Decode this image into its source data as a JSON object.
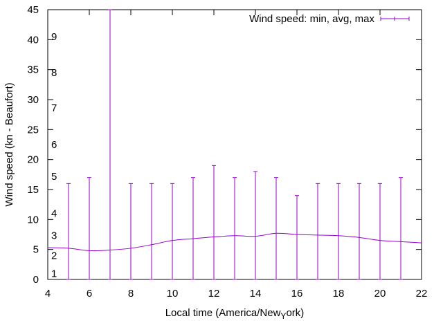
{
  "chart_data": {
    "type": "line",
    "xlabel": "Local time (America/New",
    "xlabel_sub": "Y",
    "xlabel_rest": "ork)",
    "ylabel": "Wind speed (kn - Beaufort)",
    "xlim": [
      4,
      22
    ],
    "ylim": [
      0,
      45
    ],
    "x_ticks": [
      4,
      6,
      8,
      10,
      12,
      14,
      16,
      18,
      20,
      22
    ],
    "y_ticks": [
      0,
      5,
      10,
      15,
      20,
      25,
      30,
      35,
      40,
      45
    ],
    "beaufort_scale": [
      {
        "label": "1",
        "value": 1.0
      },
      {
        "label": "2",
        "value": 4.0
      },
      {
        "label": "3",
        "value": 7.3
      },
      {
        "label": "4",
        "value": 11.0
      },
      {
        "label": "5",
        "value": 17.2
      },
      {
        "label": "6",
        "value": 22.5
      },
      {
        "label": "7",
        "value": 28.6
      },
      {
        "label": "8",
        "value": 34.5
      },
      {
        "label": "9",
        "value": 40.5
      }
    ],
    "legend_position": "top-right",
    "grid": false,
    "color": "#9400d3",
    "series": [
      {
        "name": "Wind speed: min, avg, max",
        "x": [
          4,
          5,
          6,
          7,
          8,
          9,
          10,
          11,
          12,
          13,
          14,
          15,
          16,
          17,
          18,
          19,
          20,
          21,
          22
        ],
        "avg": [
          5.3,
          5.2,
          4.8,
          4.9,
          5.2,
          5.8,
          6.5,
          6.8,
          7.1,
          7.3,
          7.2,
          7.7,
          7.5,
          7.4,
          7.3,
          7.0,
          6.5,
          6.3,
          6.1
        ],
        "min": [
          null,
          0,
          0,
          0,
          0,
          0,
          0,
          0,
          0,
          0,
          0,
          0,
          0,
          0,
          0,
          0,
          0,
          0,
          null
        ],
        "max": [
          null,
          16,
          17,
          45,
          16,
          16,
          16,
          17,
          19,
          17,
          18,
          17,
          14,
          16,
          16,
          16,
          16,
          17,
          null
        ]
      }
    ]
  }
}
